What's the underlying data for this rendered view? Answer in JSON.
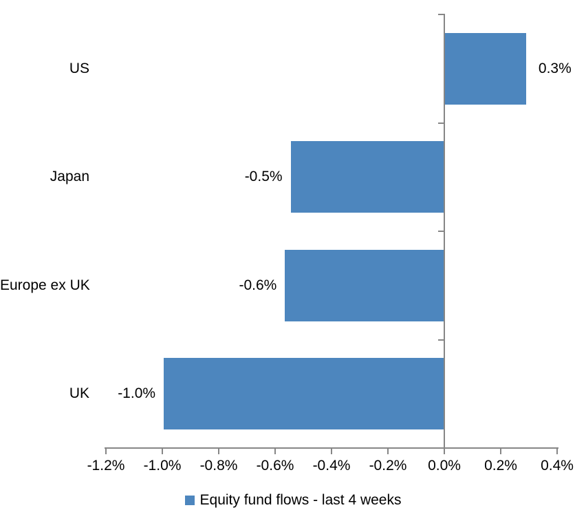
{
  "chart_data": {
    "type": "bar",
    "orientation": "horizontal",
    "title": "",
    "categories": [
      "US",
      "Japan",
      "Europe ex UK",
      "UK"
    ],
    "values": [
      0.3,
      -0.5,
      -0.6,
      -1.0
    ],
    "values_precise": [
      0.29,
      -0.545,
      -0.565,
      -0.995
    ],
    "data_labels": [
      "0.3%",
      "-0.5%",
      "-0.6%",
      "-1.0%"
    ],
    "x_ticks": [
      -1.2,
      -1.0,
      -0.8,
      -0.6,
      -0.4,
      -0.2,
      0.0,
      0.2,
      0.4
    ],
    "x_tick_labels": [
      "-1.2%",
      "-1.0%",
      "-0.8%",
      "-0.6%",
      "-0.4%",
      "-0.2%",
      "0.0%",
      "0.2%",
      "0.4%"
    ],
    "xlim": [
      -1.2,
      0.4
    ],
    "grid": false,
    "legend": {
      "label": "Equity fund flows - last 4 weeks",
      "position": "bottom"
    },
    "colors": {
      "bar": "#4D86BE",
      "axis": "#868686",
      "text": "#000000",
      "background": "#ffffff"
    }
  }
}
